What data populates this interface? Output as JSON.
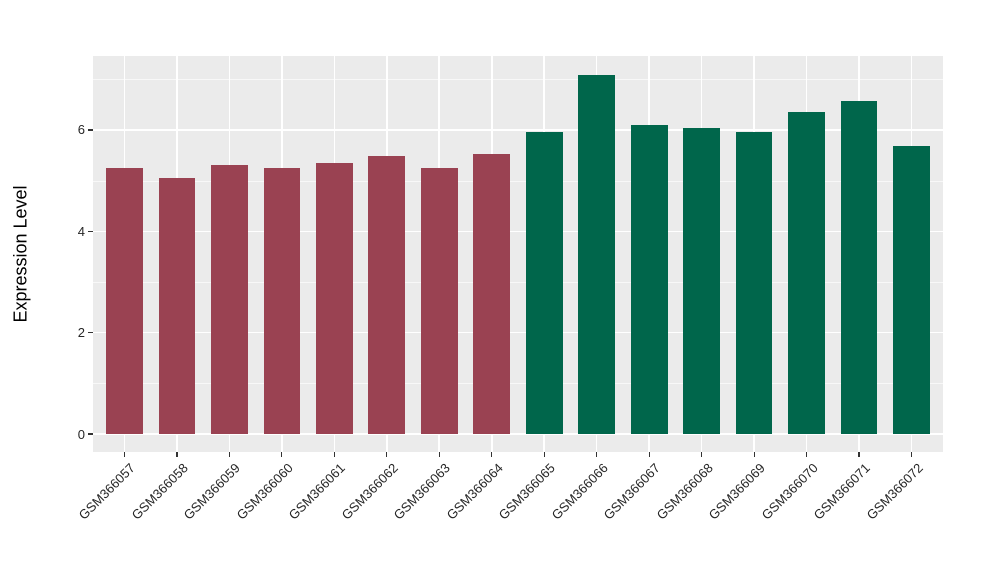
{
  "chart_data": {
    "type": "bar",
    "title": "",
    "xlabel": "",
    "ylabel": "Expression Level",
    "categories": [
      "GSM366057",
      "GSM366058",
      "GSM366059",
      "GSM366060",
      "GSM366061",
      "GSM366062",
      "GSM366063",
      "GSM366064",
      "GSM366065",
      "GSM366066",
      "GSM366067",
      "GSM366068",
      "GSM366069",
      "GSM366070",
      "GSM366071",
      "GSM366072"
    ],
    "values": [
      5.24,
      5.05,
      5.3,
      5.24,
      5.35,
      5.48,
      5.25,
      5.53,
      5.97,
      7.09,
      6.1,
      6.04,
      5.96,
      6.36,
      6.58,
      5.69
    ],
    "bar_colors": [
      "#9A4252",
      "#9A4252",
      "#9A4252",
      "#9A4252",
      "#9A4252",
      "#9A4252",
      "#9A4252",
      "#9A4252",
      "#00664B",
      "#00664B",
      "#00664B",
      "#00664B",
      "#00664B",
      "#00664B",
      "#00664B",
      "#00664B"
    ],
    "group_colors": {
      "left_group": "#9A4252",
      "right_group": "#00664B"
    },
    "yticks": [
      0,
      2,
      4,
      6
    ],
    "minor_gridlines": [
      1,
      3,
      5,
      7
    ],
    "ylim": [
      -0.36,
      7.46
    ],
    "grid": "on",
    "legend_position": "none",
    "panel_background": "#EBEBEB",
    "gridline_color": "#FFFFFF",
    "axis_text_color": "#262626"
  }
}
